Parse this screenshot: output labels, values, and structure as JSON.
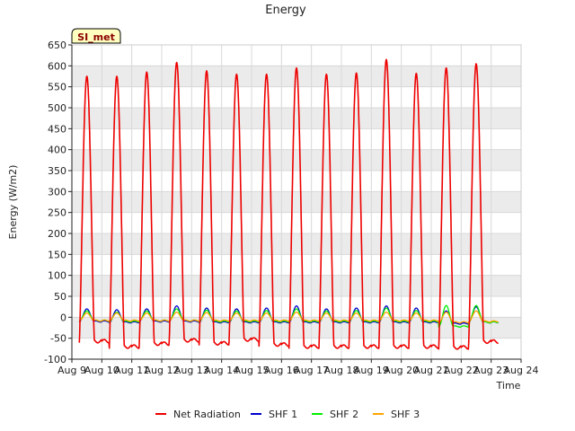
{
  "chart_data": {
    "type": "line",
    "title": "Energy",
    "xlabel": "Time",
    "ylabel": "Energy (W/m2)",
    "site_label": "SI_met",
    "ylim": [
      -100,
      650
    ],
    "yticks": [
      -100,
      -50,
      0,
      50,
      100,
      150,
      200,
      250,
      300,
      350,
      400,
      450,
      500,
      550,
      600,
      650
    ],
    "xlim": [
      "Aug 9",
      "Aug 24"
    ],
    "xticks": [
      "Aug 9",
      "Aug 10",
      "Aug 11",
      "Aug 12",
      "Aug 13",
      "Aug 14",
      "Aug 15",
      "Aug 16",
      "Aug 17",
      "Aug 18",
      "Aug 19",
      "Aug 20",
      "Aug 21",
      "Aug 22",
      "Aug 23",
      "Aug 24"
    ],
    "grid": true,
    "legend_position": "bottom",
    "series": [
      {
        "name": "Net Radiation",
        "color": "#ee0000",
        "daily_peak": [
          575,
          575,
          585,
          608,
          588,
          580,
          580,
          595,
          580,
          583,
          615,
          582,
          595,
          605
        ],
        "night_min": [
          -57,
          -70,
          -63,
          -55,
          -62,
          -53,
          -65,
          -70,
          -70,
          -70,
          -70,
          -70,
          -72,
          -58
        ]
      },
      {
        "name": "SHF 1",
        "color": "#0000cc",
        "daily_peak": [
          20,
          18,
          20,
          27,
          22,
          20,
          22,
          27,
          20,
          22,
          27,
          22,
          15,
          25
        ],
        "night_min": [
          -10,
          -12,
          -10,
          -10,
          -12,
          -12,
          -12,
          -12,
          -12,
          -12,
          -12,
          -12,
          -15,
          -12
        ]
      },
      {
        "name": "SHF 2",
        "color": "#00ee00",
        "daily_peak": [
          15,
          12,
          15,
          20,
          17,
          15,
          16,
          20,
          15,
          16,
          22,
          16,
          28,
          28
        ],
        "night_min": [
          -8,
          -10,
          -8,
          -8,
          -10,
          -10,
          -10,
          -10,
          -10,
          -10,
          -10,
          -10,
          -22,
          -12
        ]
      },
      {
        "name": "SHF 3",
        "color": "#ffa500",
        "daily_peak": [
          10,
          10,
          10,
          12,
          11,
          10,
          10,
          12,
          10,
          10,
          12,
          10,
          12,
          15
        ],
        "night_min": [
          -8,
          -8,
          -8,
          -8,
          -8,
          -8,
          -8,
          -8,
          -8,
          -8,
          -8,
          -8,
          -12,
          -10
        ]
      }
    ]
  }
}
